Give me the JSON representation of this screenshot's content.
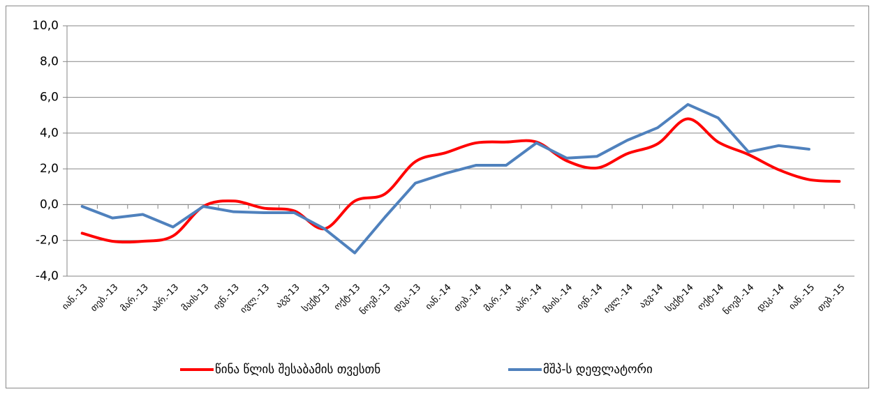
{
  "chart_data": {
    "type": "line",
    "categories": [
      "იან.-13",
      "თებ.-13",
      "მარ.-13",
      "აპრ.-13",
      "მაის-13",
      "ივნ.-13",
      "ივლ.-13",
      "აგვ-13",
      "სექტ-13",
      "ოქტ-13",
      "ნოემ.-13",
      "დეკ.-13",
      "იან.-14",
      "თებ.-14",
      "მარ.-14",
      "აპრ.-14",
      "მაის.-14",
      "ივნ.-14",
      "ივლ.-14",
      "აგვ-14",
      "სექტ-14",
      "ოქტ-14",
      "ნოემ.-14",
      "დეკ.-14",
      "იან.-15",
      "თებ.-15"
    ],
    "series": [
      {
        "name": "წინა წლის შესაბამის თვესთნ",
        "color": "#ff0000",
        "smooth": true,
        "values": [
          -1.6,
          -2.05,
          -2.05,
          -1.75,
          -0.1,
          0.2,
          -0.2,
          -0.35,
          -1.35,
          0.2,
          0.6,
          2.4,
          2.9,
          3.45,
          3.5,
          3.5,
          2.45,
          2.05,
          2.85,
          3.4,
          4.8,
          3.5,
          2.8,
          1.95,
          1.4,
          1.3
        ]
      },
      {
        "name": "მშპ-ს დეფლატორი",
        "color": "#4f81bd",
        "smooth": false,
        "values": [
          -0.1,
          -0.75,
          -0.55,
          -1.25,
          -0.1,
          -0.4,
          -0.45,
          -0.45,
          -1.35,
          -2.7,
          -0.7,
          1.2,
          1.75,
          2.2,
          2.2,
          3.45,
          2.6,
          2.7,
          3.6,
          4.3,
          5.6,
          4.85,
          2.95,
          3.3,
          3.1,
          null
        ]
      }
    ],
    "ylim": [
      -4,
      10
    ],
    "yticks": [
      {
        "value": -4,
        "label": "-4,0"
      },
      {
        "value": -2,
        "label": "-2,0"
      },
      {
        "value": 0,
        "label": "0,0"
      },
      {
        "value": 2,
        "label": "2,0"
      },
      {
        "value": 4,
        "label": "4,0"
      },
      {
        "value": 6,
        "label": "6,0"
      },
      {
        "value": 8,
        "label": "8,0"
      },
      {
        "value": 10,
        "label": "10,0"
      }
    ],
    "grid": true,
    "legend": "bottom"
  }
}
